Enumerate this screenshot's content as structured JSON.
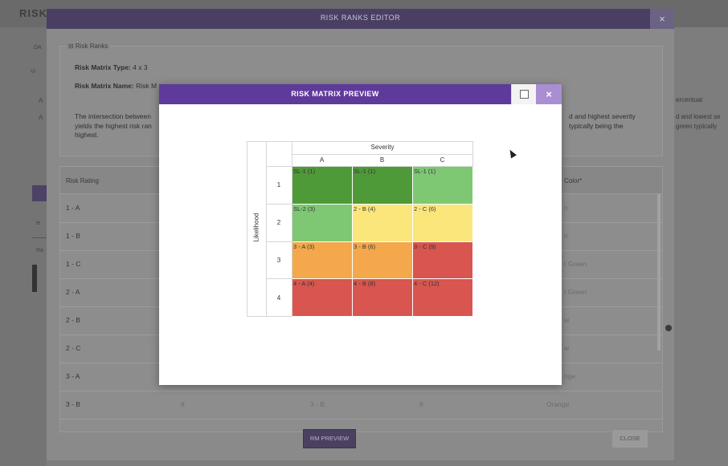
{
  "background": {
    "title": "RISK",
    "left_tabs": [
      "DA",
      "Vi"
    ],
    "fragments": [
      "A",
      "A",
      "le",
      "Ra"
    ]
  },
  "editor": {
    "title": "RISK RANKS EDITOR",
    "close_label": "×",
    "risk_ranks_legend": "⊟ Risk Ranks",
    "matrix_type_label": "Risk Matrix Type:",
    "matrix_type_value": "4 x 3",
    "matrix_name_label": "Risk Matrix Name:",
    "matrix_name_value": "Risk M",
    "description_line1": "The intersection between",
    "description_line2": "yields the highest risk ran",
    "description_line3": "highest.",
    "description_right1": "d and highest severity",
    "description_right2": "typically being the",
    "description_far_right1": "ercentual",
    "description_far_right2": "d and lowest se",
    "description_far_right3": "green typically",
    "table_headers": {
      "rating": "Risk Rating",
      "color": "Color*"
    },
    "rows": [
      {
        "rating": "1 - A",
        "color": "n"
      },
      {
        "rating": "1 - B",
        "color": "n"
      },
      {
        "rating": "1 - C",
        "color": "t Green"
      },
      {
        "rating": "2 - A",
        "color": "t Green"
      },
      {
        "rating": "2 - B",
        "color": "w"
      },
      {
        "rating": "2 - C",
        "color": "w"
      },
      {
        "rating": "3 - A",
        "color": "nge"
      },
      {
        "rating": "3 - B",
        "col2": "6",
        "col3": "3 - B",
        "col4": "6",
        "color": "Orange"
      }
    ],
    "rm_preview_label": "RM PREVIEW",
    "close_button_label": "CLOSE"
  },
  "preview": {
    "title": "RISK MATRIX PREVIEW",
    "close_label": "×"
  },
  "chart_data": {
    "type": "heatmap",
    "title": "",
    "x_axis_title": "Severity",
    "y_axis_title": "Likelihood",
    "columns": [
      "A",
      "B",
      "C"
    ],
    "rows": [
      "1",
      "2",
      "3",
      "4"
    ],
    "cells": [
      [
        {
          "label": "SL-1 (1)",
          "color": "#4f9a38"
        },
        {
          "label": "SL-1 (1)",
          "color": "#4f9a38"
        },
        {
          "label": "SL-1 (1)",
          "color": "#7ec873"
        }
      ],
      [
        {
          "label": "SL-2 (3)",
          "color": "#7ec873"
        },
        {
          "label": "2 - B (4)",
          "color": "#fbe67c"
        },
        {
          "label": "2 - C (6)",
          "color": "#fbe67c"
        }
      ],
      [
        {
          "label": "3 - A (3)",
          "color": "#f4a84b"
        },
        {
          "label": "3 - B (6)",
          "color": "#f4a84b"
        },
        {
          "label": "3 - C (9)",
          "color": "#d9554f"
        }
      ],
      [
        {
          "label": "4 - A (4)",
          "color": "#d9554f"
        },
        {
          "label": "4 - B (8)",
          "color": "#d9554f"
        },
        {
          "label": "4 - C (12)",
          "color": "#d9554f"
        }
      ]
    ]
  }
}
